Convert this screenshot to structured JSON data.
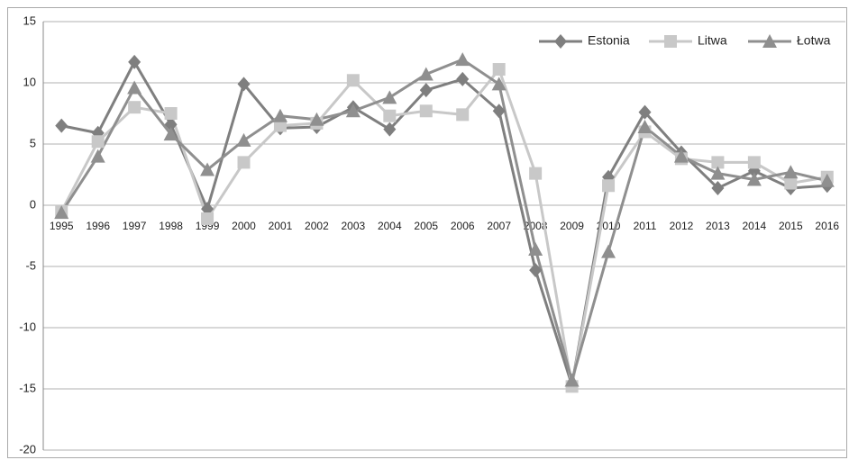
{
  "chart_data": {
    "type": "line",
    "categories": [
      "1995",
      "1996",
      "1997",
      "1998",
      "1999",
      "2000",
      "2001",
      "2002",
      "2003",
      "2004",
      "2005",
      "2006",
      "2007",
      "2008",
      "2009",
      "2010",
      "2011",
      "2012",
      "2013",
      "2014",
      "2015",
      "2016"
    ],
    "series": [
      {
        "name": "Estonia",
        "color": "#7f7f7f",
        "marker": "diamond",
        "values": [
          6.5,
          5.9,
          11.7,
          6.6,
          -0.3,
          9.9,
          6.3,
          6.4,
          8.0,
          6.2,
          9.4,
          10.3,
          7.7,
          -5.3,
          -14.7,
          2.3,
          7.6,
          4.3,
          1.4,
          2.8,
          1.4,
          1.6
        ]
      },
      {
        "name": "Litwa",
        "color": "#c8c8c8",
        "marker": "square",
        "values": [
          -0.5,
          5.2,
          8.0,
          7.5,
          -1.1,
          3.5,
          6.5,
          6.7,
          10.2,
          7.3,
          7.7,
          7.4,
          11.1,
          2.6,
          -14.8,
          1.6,
          6.0,
          3.8,
          3.5,
          3.5,
          1.8,
          2.3
        ]
      },
      {
        "name": "Łotwa",
        "color": "#8f8f8f",
        "marker": "triangle",
        "values": [
          -0.6,
          4.0,
          9.6,
          5.8,
          2.9,
          5.3,
          7.3,
          7.0,
          7.7,
          8.8,
          10.7,
          11.9,
          9.9,
          -3.6,
          -14.3,
          -3.8,
          6.4,
          4.0,
          2.6,
          2.1,
          2.7,
          2.0
        ]
      }
    ],
    "ylim": [
      -20,
      15
    ],
    "yticks": [
      -20,
      -15,
      -10,
      -5,
      0,
      5,
      10,
      15
    ],
    "grid": true,
    "legend": "top-right"
  }
}
